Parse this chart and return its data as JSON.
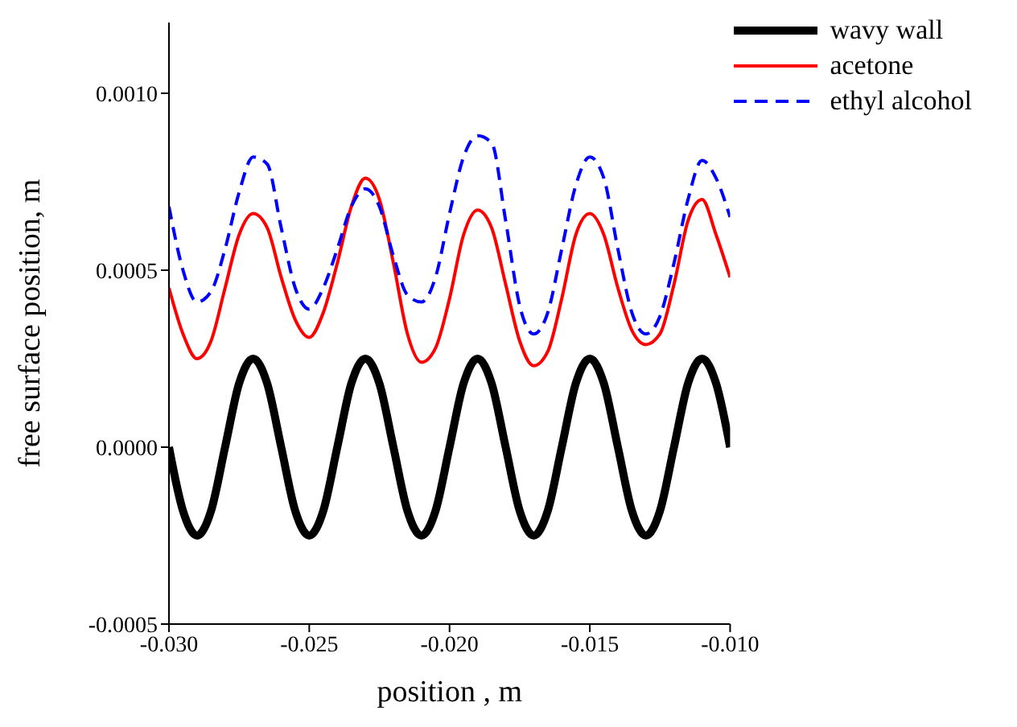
{
  "chart_data": {
    "type": "line",
    "xlabel": "position , m",
    "ylabel": "free surface position, m",
    "xlim": [
      -0.03,
      -0.01
    ],
    "xticks": [
      {
        "value": -0.03,
        "label": "-0.030"
      },
      {
        "value": -0.025,
        "label": "-0.025"
      },
      {
        "value": -0.02,
        "label": "-0.020"
      },
      {
        "value": -0.015,
        "label": "-0.015"
      },
      {
        "value": -0.01,
        "label": "-0.010"
      }
    ],
    "ylim": [
      -0.0005,
      0.0012
    ],
    "yticks": [
      {
        "value": -0.0005,
        "label": "-0.0005"
      },
      {
        "value": 0,
        "label": "0.0000"
      },
      {
        "value": 0.0005,
        "label": "0.0005"
      },
      {
        "value": 0.001,
        "label": "0.0010"
      }
    ],
    "grid": false,
    "legend": "top right",
    "marker": "none",
    "x": [
      -0.03,
      -0.0295,
      -0.029,
      -0.0285,
      -0.028,
      -0.0275,
      -0.027,
      -0.0265,
      -0.026,
      -0.0255,
      -0.025,
      -0.0245,
      -0.024,
      -0.0235,
      -0.023,
      -0.0225,
      -0.022,
      -0.0215,
      -0.021,
      -0.0205,
      -0.02,
      -0.0195,
      -0.019,
      -0.0185,
      -0.018,
      -0.0175,
      -0.017,
      -0.0165,
      -0.016,
      -0.0155,
      -0.015,
      -0.0145,
      -0.014,
      -0.0135,
      -0.013,
      -0.0125,
      -0.012,
      -0.0115,
      -0.011,
      -0.0105,
      -0.01
    ],
    "series": [
      {
        "name": "wavy wall",
        "color": "#000000",
        "line_style": "solid",
        "values": [
          0,
          -0.00018,
          -0.00025,
          -0.00018,
          0,
          0.00018,
          0.00025,
          0.00018,
          0,
          -0.00018,
          -0.00025,
          -0.00018,
          0,
          0.00018,
          0.00025,
          0.00018,
          0,
          -0.00018,
          -0.00025,
          -0.00018,
          0,
          0.00018,
          0.00025,
          0.00018,
          0,
          -0.00018,
          -0.00025,
          -0.00018,
          0,
          0.00018,
          0.00025,
          0.00018,
          0,
          -0.00018,
          -0.00025,
          -0.00018,
          0,
          0.00018,
          0.00025,
          0.00018,
          0
        ]
      },
      {
        "name": "acetone",
        "color": "#ff0000",
        "line_style": "solid",
        "values": [
          0.00045,
          0.00032,
          0.00025,
          0.0003,
          0.00045,
          0.0006,
          0.00066,
          0.00062,
          0.00048,
          0.00036,
          0.00031,
          0.00038,
          0.00052,
          0.00068,
          0.00076,
          0.0007,
          0.00052,
          0.00032,
          0.00024,
          0.00028,
          0.00042,
          0.0006,
          0.00067,
          0.00062,
          0.00046,
          0.0003,
          0.00023,
          0.00027,
          0.00042,
          0.0006,
          0.00066,
          0.0006,
          0.00045,
          0.00033,
          0.00029,
          0.00032,
          0.00046,
          0.00064,
          0.0007,
          0.0006,
          0.00048
        ]
      },
      {
        "name": "ethyl alcohol",
        "color": "#0000ff",
        "line_style": "dashed",
        "values": [
          0.00068,
          0.0005,
          0.00041,
          0.00044,
          0.00056,
          0.00072,
          0.00082,
          0.0008,
          0.00062,
          0.00045,
          0.00039,
          0.00045,
          0.00056,
          0.00068,
          0.00073,
          0.00068,
          0.00054,
          0.00043,
          0.00041,
          0.00048,
          0.00066,
          0.00082,
          0.00088,
          0.00086,
          0.00064,
          0.0004,
          0.00032,
          0.00038,
          0.00056,
          0.00074,
          0.00082,
          0.00076,
          0.00056,
          0.00038,
          0.00032,
          0.00037,
          0.00052,
          0.0007,
          0.00081,
          0.00076,
          0.00065
        ]
      }
    ]
  }
}
